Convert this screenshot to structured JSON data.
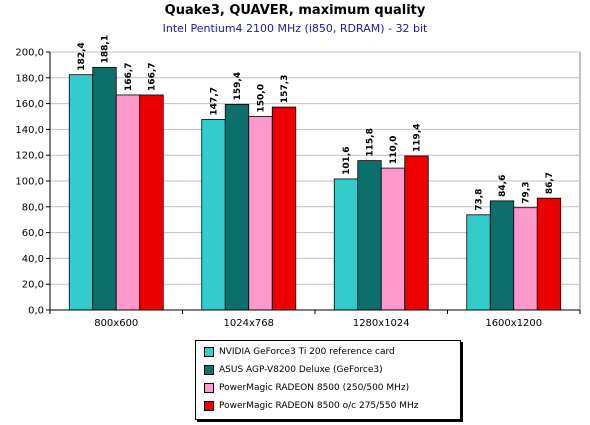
{
  "chart_data": {
    "type": "bar",
    "title": "Quake3, QUAVER, maximum quality",
    "subtitle": "Intel Pentium4 2100 MHz (i850, RDRAM) - 32 bit",
    "categories": [
      "800x600",
      "1024x768",
      "1280x1024",
      "1600x1200"
    ],
    "ylim": [
      0,
      200
    ],
    "yticks": [
      "0,0",
      "20,0",
      "40,0",
      "60,0",
      "80,0",
      "100,0",
      "120,0",
      "140,0",
      "160,0",
      "180,0",
      "200,0"
    ],
    "grid": true,
    "legend_position": "bottom",
    "series": [
      {
        "name": "NVIDIA GeForce3 Ti 200 reference card",
        "color": "#33cccc",
        "values": [
          182.4,
          147.7,
          101.6,
          73.8
        ],
        "labels": [
          "182,4",
          "147,7",
          "101,6",
          "73,8"
        ]
      },
      {
        "name": "ASUS AGP-V8200 Deluxe (GeForce3)",
        "color": "#0d6f6b",
        "values": [
          188.1,
          159.4,
          115.8,
          84.6
        ],
        "labels": [
          "188,1",
          "159,4",
          "115,8",
          "84,6"
        ]
      },
      {
        "name": "PowerMagic RADEON 8500 (250/500 MHz)",
        "color": "#ff99cc",
        "values": [
          166.7,
          150.0,
          110.0,
          79.3
        ],
        "labels": [
          "166,7",
          "150,0",
          "110,0",
          "79,3"
        ]
      },
      {
        "name": "PowerMagic RADEON 8500 o/c 275/550 MHz",
        "color": "#ee0000",
        "values": [
          166.7,
          157.3,
          119.4,
          86.7
        ],
        "labels": [
          "166,7",
          "157,3",
          "119,4",
          "86,7"
        ]
      }
    ]
  }
}
